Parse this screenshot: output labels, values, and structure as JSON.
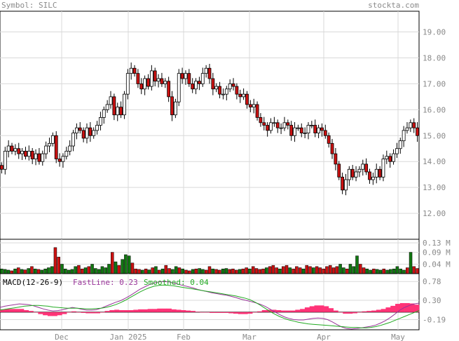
{
  "header": {
    "symbol_label": "Symbol: SILC",
    "brand": "stockta.com"
  },
  "colors": {
    "up": "#ffffff",
    "down": "#cc1111",
    "vol_up": "#117711",
    "vol_down": "#cc1111",
    "grid": "#d9d9d9",
    "axis_text": "#8a8a8a",
    "macd_hist": "#ff3377",
    "fast_line": "#993399",
    "smoothed_line": "#22aa22"
  },
  "chart_data": [
    {
      "type": "candlestick",
      "panel": "price",
      "x_axis_labels": [
        "Dec",
        "Jan 2025",
        "Feb",
        "Mar",
        "Apr",
        "May"
      ],
      "y_ticks": [
        12.0,
        13.0,
        14.0,
        15.0,
        16.0,
        17.0,
        18.0,
        19.0
      ],
      "y_tick_labels": [
        "12.00",
        "13.00",
        "14.00",
        "15.00",
        "16.00",
        "17.00",
        "18.00",
        "19.00"
      ],
      "ylim": [
        11.0,
        19.8
      ],
      "grid": true,
      "close": [
        13.7,
        14.4,
        14.6,
        14.4,
        14.5,
        14.3,
        14.4,
        14.2,
        14.4,
        14.1,
        14.3,
        14.0,
        14.3,
        14.6,
        14.7,
        15.0,
        14.1,
        14.0,
        14.2,
        14.4,
        14.6,
        15.1,
        15.3,
        15.2,
        14.9,
        15.3,
        15.0,
        15.2,
        15.4,
        15.7,
        16.0,
        16.2,
        16.5,
        15.8,
        16.1,
        15.8,
        16.6,
        17.4,
        17.6,
        17.4,
        17.0,
        16.8,
        17.2,
        16.9,
        17.5,
        17.1,
        17.2,
        17.0,
        17.1,
        16.5,
        15.8,
        16.3,
        17.4,
        17.2,
        17.4,
        17.0,
        16.8,
        17.1,
        17.0,
        17.4,
        17.6,
        17.2,
        16.8,
        16.9,
        16.6,
        16.6,
        16.8,
        17.0,
        16.9,
        16.6,
        16.5,
        16.6,
        16.2,
        16.1,
        16.2,
        15.7,
        15.5,
        15.4,
        15.2,
        15.5,
        15.5,
        15.3,
        15.3,
        15.5,
        15.4,
        15.0,
        15.3,
        15.3,
        15.1,
        15.1,
        15.4,
        15.4,
        15.1,
        15.3,
        15.2,
        15.0,
        14.7,
        14.3,
        13.9,
        13.4,
        12.9,
        13.3,
        13.7,
        13.4,
        13.6,
        13.7,
        13.9,
        13.6,
        13.3,
        13.4,
        13.7,
        13.4,
        14.1,
        14.2,
        14.0,
        14.3,
        14.5,
        14.8,
        15.2,
        15.3,
        15.5,
        15.3,
        15.0
      ]
    },
    {
      "type": "bar",
      "panel": "volume",
      "y_tick_labels": [
        "0.13 M",
        "0.09 M",
        "0.04 M"
      ],
      "y_ticks": [
        0.13,
        0.09,
        0.04
      ],
      "ylim": [
        0,
        0.145
      ],
      "values": [
        0.02,
        0.018,
        0.015,
        0.012,
        0.02,
        0.025,
        0.018,
        0.016,
        0.022,
        0.03,
        0.02,
        0.018,
        0.015,
        0.02,
        0.025,
        0.03,
        0.11,
        0.07,
        0.04,
        0.02,
        0.015,
        0.018,
        0.03,
        0.035,
        0.02,
        0.025,
        0.03,
        0.04,
        0.022,
        0.018,
        0.03,
        0.025,
        0.04,
        0.09,
        0.05,
        0.035,
        0.06,
        0.08,
        0.075,
        0.045,
        0.02,
        0.018,
        0.015,
        0.02,
        0.016,
        0.025,
        0.03,
        0.015,
        0.02,
        0.035,
        0.022,
        0.018,
        0.03,
        0.025,
        0.02,
        0.015,
        0.012,
        0.018,
        0.02,
        0.022,
        0.018,
        0.015,
        0.03,
        0.02,
        0.018,
        0.015,
        0.02,
        0.022,
        0.018,
        0.02,
        0.015,
        0.018,
        0.02,
        0.025,
        0.02,
        0.03,
        0.022,
        0.018,
        0.02,
        0.025,
        0.03,
        0.035,
        0.025,
        0.02,
        0.03,
        0.035,
        0.025,
        0.02,
        0.03,
        0.025,
        0.02,
        0.035,
        0.03,
        0.025,
        0.03,
        0.025,
        0.02,
        0.03,
        0.035,
        0.025,
        0.03,
        0.04,
        0.025,
        0.02,
        0.04,
        0.03,
        0.075,
        0.04,
        0.025,
        0.02,
        0.015,
        0.02,
        0.018,
        0.015,
        0.02,
        0.015,
        0.018,
        0.02,
        0.03,
        0.02,
        0.015,
        0.025,
        0.09,
        0.03,
        0.022
      ],
      "up": [
        true,
        true,
        true,
        false,
        true,
        false,
        true,
        false,
        true,
        false,
        true,
        false,
        true,
        true,
        true,
        true,
        false,
        false,
        true,
        true,
        true,
        true,
        true,
        false,
        false,
        true,
        false,
        true,
        true,
        true,
        true,
        true,
        true,
        false,
        true,
        false,
        true,
        true,
        true,
        false,
        false,
        false,
        true,
        false,
        true,
        false,
        true,
        false,
        true,
        false,
        false,
        true,
        true,
        false,
        true,
        false,
        false,
        true,
        false,
        true,
        true,
        false,
        false,
        true,
        false,
        false,
        true,
        true,
        false,
        false,
        false,
        true,
        false,
        false,
        true,
        false,
        false,
        false,
        false,
        true,
        false,
        false,
        false,
        true,
        false,
        false,
        true,
        false,
        false,
        false,
        true,
        false,
        false,
        true,
        false,
        false,
        false,
        false,
        false,
        false,
        false,
        true,
        true,
        false,
        true,
        true,
        true,
        false,
        false,
        true,
        true,
        false,
        true,
        true,
        false,
        true,
        true,
        true,
        true,
        true,
        true,
        false,
        true,
        false,
        false
      ]
    },
    {
      "type": "line",
      "panel": "macd",
      "title": "MACD(12-26-9)",
      "fastline_label": "FastLine: 0.23",
      "smoothed_label": "Smoothed: 0.04",
      "y_tick_labels": [
        "0.78",
        "0.30",
        "-0.19"
      ],
      "y_ticks": [
        0.78,
        0.3,
        -0.19
      ],
      "ylim": [
        -0.45,
        0.98
      ],
      "fast_line": [
        0.12,
        0.15,
        0.17,
        0.19,
        0.21,
        0.2,
        0.19,
        0.16,
        0.12,
        0.08,
        0.05,
        0.03,
        0.04,
        0.06,
        0.09,
        0.12,
        0.1,
        0.07,
        0.05,
        0.05,
        0.06,
        0.1,
        0.15,
        0.2,
        0.25,
        0.29,
        0.35,
        0.42,
        0.5,
        0.58,
        0.64,
        0.7,
        0.74,
        0.77,
        0.78,
        0.77,
        0.74,
        0.71,
        0.68,
        0.65,
        0.62,
        0.58,
        0.55,
        0.52,
        0.49,
        0.47,
        0.45,
        0.43,
        0.4,
        0.37,
        0.33,
        0.3,
        0.27,
        0.24,
        0.2,
        0.15,
        0.08,
        0.01,
        -0.06,
        -0.12,
        -0.16,
        -0.19,
        -0.2,
        -0.2,
        -0.18,
        -0.16,
        -0.15,
        -0.16,
        -0.19,
        -0.25,
        -0.32,
        -0.38,
        -0.42,
        -0.43,
        -0.42,
        -0.4,
        -0.38,
        -0.36,
        -0.33,
        -0.28,
        -0.22,
        -0.14,
        -0.05,
        0.05,
        0.12,
        0.17,
        0.21,
        0.23
      ],
      "smoothed_line": [
        0.05,
        0.07,
        0.09,
        0.11,
        0.13,
        0.15,
        0.16,
        0.17,
        0.17,
        0.16,
        0.15,
        0.13,
        0.12,
        0.11,
        0.1,
        0.1,
        0.1,
        0.09,
        0.08,
        0.08,
        0.09,
        0.1,
        0.12,
        0.15,
        0.19,
        0.24,
        0.3,
        0.37,
        0.44,
        0.51,
        0.57,
        0.62,
        0.66,
        0.68,
        0.69,
        0.68,
        0.67,
        0.65,
        0.63,
        0.61,
        0.59,
        0.57,
        0.55,
        0.53,
        0.51,
        0.49,
        0.47,
        0.45,
        0.43,
        0.41,
        0.38,
        0.35,
        0.31,
        0.25,
        0.18,
        0.1,
        0.02,
        -0.05,
        -0.11,
        -0.16,
        -0.2,
        -0.23,
        -0.26,
        -0.28,
        -0.3,
        -0.31,
        -0.32,
        -0.33,
        -0.34,
        -0.35,
        -0.36,
        -0.37,
        -0.38,
        -0.39,
        -0.39,
        -0.4,
        -0.4,
        -0.39,
        -0.37,
        -0.34,
        -0.3,
        -0.26,
        -0.21,
        -0.16,
        -0.11,
        -0.06,
        -0.01,
        0.04
      ],
      "histogram": [
        0.07,
        0.08,
        0.08,
        0.08,
        0.08,
        0.05,
        0.03,
        -0.01,
        -0.05,
        -0.08,
        -0.1,
        -0.1,
        -0.08,
        -0.05,
        -0.01,
        0.02,
        0.0,
        -0.02,
        -0.03,
        -0.03,
        -0.03,
        0.0,
        0.03,
        0.05,
        0.06,
        0.05,
        0.05,
        0.05,
        0.06,
        0.07,
        0.07,
        0.08,
        0.08,
        0.09,
        0.09,
        0.09,
        0.07,
        0.06,
        0.05,
        0.04,
        0.03,
        0.01,
        0.0,
        -0.01,
        -0.02,
        -0.02,
        -0.02,
        -0.02,
        -0.03,
        -0.04,
        -0.05,
        -0.05,
        -0.04,
        -0.01,
        0.02,
        0.05,
        0.06,
        0.06,
        0.05,
        0.04,
        0.04,
        0.04,
        0.06,
        0.08,
        0.12,
        0.15,
        0.17,
        0.17,
        0.15,
        0.1,
        0.04,
        -0.01,
        -0.04,
        -0.04,
        -0.03,
        0.0,
        0.02,
        0.03,
        0.04,
        0.06,
        0.08,
        0.12,
        0.16,
        0.21,
        0.23,
        0.23,
        0.22,
        0.19
      ]
    }
  ]
}
